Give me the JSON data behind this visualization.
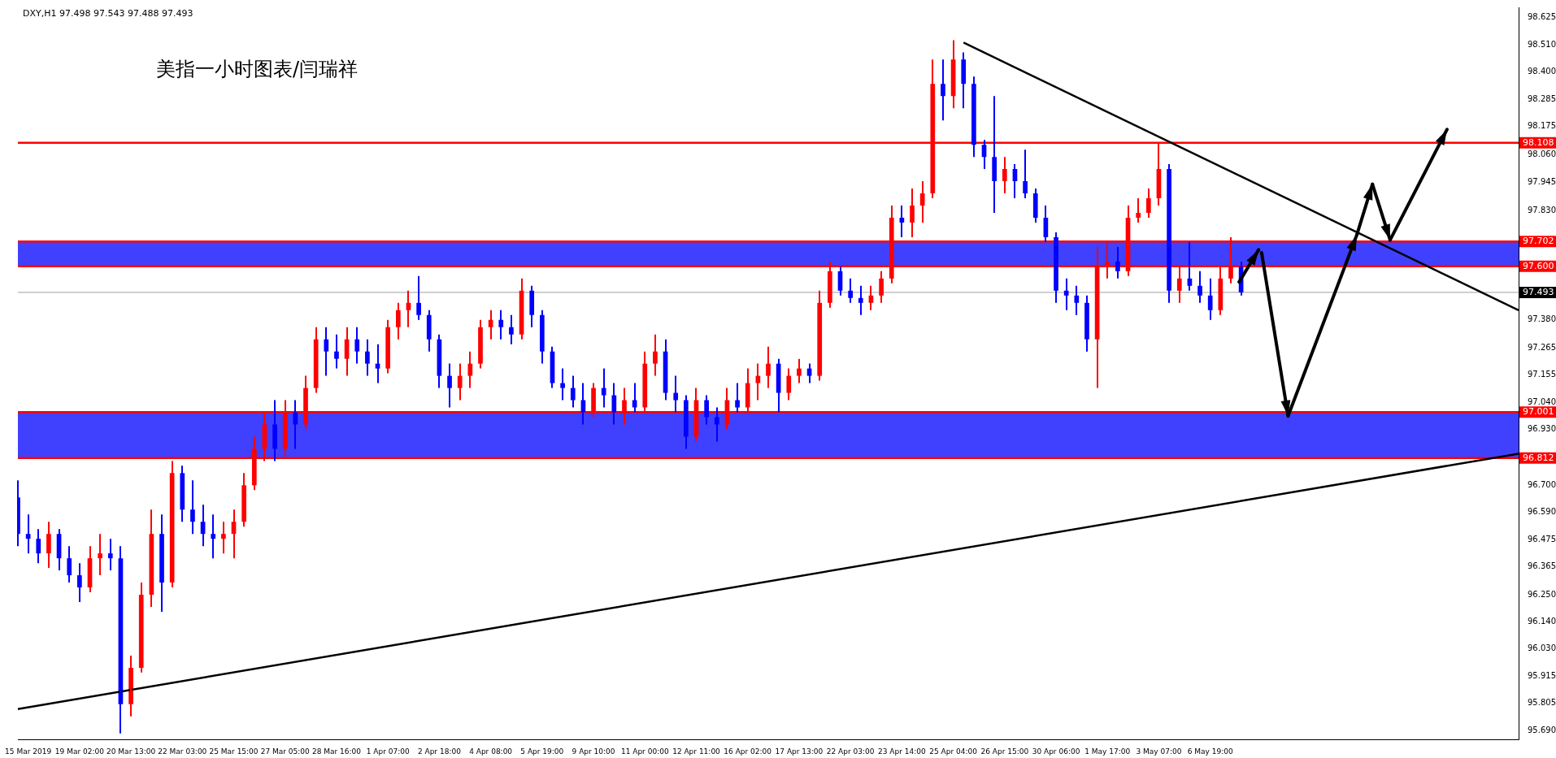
{
  "chart_data": {
    "type": "candlestick",
    "title": "美指一小时图表/闫瑞祥",
    "annotations": [
      "DXY,H1 97.498 97.543 97.488 97.493"
    ],
    "categories": [
      null,
      "15 Mar 2019",
      null,
      null,
      null,
      null,
      "19 Mar 02:00",
      null,
      null,
      null,
      null,
      "20 Mar 13:00",
      null,
      null,
      null,
      null,
      "22 Mar 03:00",
      null,
      null,
      null,
      null,
      "25 Mar 15:00",
      null,
      null,
      null,
      null,
      "27 Mar 05:00",
      null,
      null,
      null,
      null,
      "28 Mar 16:00",
      null,
      null,
      null,
      null,
      "1 Apr 07:00",
      null,
      null,
      null,
      null,
      "2 Apr 18:00",
      null,
      null,
      null,
      null,
      "4 Apr 08:00",
      null,
      null,
      null,
      null,
      "5 Apr 19:00",
      null,
      null,
      null,
      null,
      "9 Apr 10:00",
      null,
      null,
      null,
      null,
      "11 Apr 00:00",
      null,
      null,
      null,
      null,
      "12 Apr 11:00",
      null,
      null,
      null,
      null,
      "16 Apr 02:00",
      null,
      null,
      null,
      null,
      "17 Apr 13:00",
      null,
      null,
      null,
      null,
      "22 Apr 03:00",
      null,
      null,
      null,
      null,
      "23 Apr 14:00",
      null,
      null,
      null,
      null,
      "25 Apr 04:00",
      null,
      null,
      null,
      null,
      "26 Apr 15:00",
      null,
      null,
      null,
      null,
      "30 Apr 06:00",
      null,
      null,
      null,
      null,
      "1 May 17:00",
      null,
      null,
      null,
      null,
      "3 May 07:00",
      null,
      null,
      null,
      null,
      "6 May 19:00",
      null,
      null,
      null,
      null,
      null,
      null,
      null,
      null,
      null,
      null,
      null,
      null,
      null,
      null,
      null,
      null,
      null,
      null,
      null,
      null,
      null,
      null,
      null,
      null,
      null,
      null,
      null,
      null,
      null,
      null
    ],
    "ohlc": [
      [
        96.65,
        96.72,
        96.45,
        96.5
      ],
      [
        96.5,
        96.58,
        96.42,
        96.48
      ],
      [
        96.48,
        96.52,
        96.38,
        96.42
      ],
      [
        96.42,
        96.55,
        96.36,
        96.5
      ],
      [
        96.5,
        96.52,
        96.35,
        96.4
      ],
      [
        96.4,
        96.45,
        96.3,
        96.33
      ],
      [
        96.33,
        96.38,
        96.22,
        96.28
      ],
      [
        96.28,
        96.45,
        96.26,
        96.4
      ],
      [
        96.4,
        96.5,
        96.33,
        96.42
      ],
      [
        96.42,
        96.48,
        96.35,
        96.4
      ],
      [
        96.4,
        96.45,
        95.68,
        95.8
      ],
      [
        95.8,
        96.0,
        95.75,
        95.95
      ],
      [
        95.95,
        96.3,
        95.93,
        96.25
      ],
      [
        96.25,
        96.6,
        96.2,
        96.5
      ],
      [
        96.5,
        96.58,
        96.18,
        96.3
      ],
      [
        96.3,
        96.8,
        96.28,
        96.75
      ],
      [
        96.75,
        96.78,
        96.55,
        96.6
      ],
      [
        96.6,
        96.72,
        96.5,
        96.55
      ],
      [
        96.55,
        96.62,
        96.45,
        96.5
      ],
      [
        96.5,
        96.58,
        96.4,
        96.48
      ],
      [
        96.48,
        96.55,
        96.42,
        96.5
      ],
      [
        96.5,
        96.6,
        96.4,
        96.55
      ],
      [
        96.55,
        96.75,
        96.53,
        96.7
      ],
      [
        96.7,
        96.9,
        96.68,
        96.85
      ],
      [
        96.85,
        97.0,
        96.8,
        96.95
      ],
      [
        96.95,
        97.05,
        96.8,
        96.85
      ],
      [
        96.85,
        97.05,
        96.82,
        97.0
      ],
      [
        97.0,
        97.05,
        96.85,
        96.95
      ],
      [
        96.95,
        97.15,
        96.93,
        97.1
      ],
      [
        97.1,
        97.35,
        97.08,
        97.3
      ],
      [
        97.3,
        97.35,
        97.15,
        97.25
      ],
      [
        97.25,
        97.32,
        97.18,
        97.22
      ],
      [
        97.22,
        97.35,
        97.15,
        97.3
      ],
      [
        97.3,
        97.35,
        97.2,
        97.25
      ],
      [
        97.25,
        97.3,
        97.15,
        97.2
      ],
      [
        97.2,
        97.28,
        97.12,
        97.18
      ],
      [
        97.18,
        97.38,
        97.16,
        97.35
      ],
      [
        97.35,
        97.45,
        97.3,
        97.42
      ],
      [
        97.42,
        97.5,
        97.35,
        97.45
      ],
      [
        97.45,
        97.56,
        97.38,
        97.4
      ],
      [
        97.4,
        97.42,
        97.25,
        97.3
      ],
      [
        97.3,
        97.32,
        97.1,
        97.15
      ],
      [
        97.15,
        97.2,
        97.02,
        97.1
      ],
      [
        97.1,
        97.2,
        97.05,
        97.15
      ],
      [
        97.15,
        97.25,
        97.1,
        97.2
      ],
      [
        97.2,
        97.38,
        97.18,
        97.35
      ],
      [
        97.35,
        97.42,
        97.3,
        97.38
      ],
      [
        97.38,
        97.42,
        97.3,
        97.35
      ],
      [
        97.35,
        97.4,
        97.28,
        97.32
      ],
      [
        97.32,
        97.55,
        97.3,
        97.5
      ],
      [
        97.5,
        97.52,
        97.35,
        97.4
      ],
      [
        97.4,
        97.42,
        97.2,
        97.25
      ],
      [
        97.25,
        97.27,
        97.1,
        97.12
      ],
      [
        97.12,
        97.18,
        97.05,
        97.1
      ],
      [
        97.1,
        97.15,
        97.02,
        97.05
      ],
      [
        97.05,
        97.12,
        96.95,
        97.0
      ],
      [
        97.0,
        97.12,
        96.98,
        97.1
      ],
      [
        97.1,
        97.18,
        97.02,
        97.07
      ],
      [
        97.07,
        97.12,
        96.95,
        97.0
      ],
      [
        97.0,
        97.1,
        96.95,
        97.05
      ],
      [
        97.05,
        97.12,
        97.0,
        97.02
      ],
      [
        97.02,
        97.25,
        97.0,
        97.2
      ],
      [
        97.2,
        97.32,
        97.15,
        97.25
      ],
      [
        97.25,
        97.3,
        97.05,
        97.08
      ],
      [
        97.08,
        97.15,
        97.0,
        97.05
      ],
      [
        97.05,
        97.07,
        96.85,
        96.9
      ],
      [
        96.9,
        97.1,
        96.88,
        97.05
      ],
      [
        97.05,
        97.07,
        96.95,
        96.98
      ],
      [
        96.98,
        97.02,
        96.88,
        96.95
      ],
      [
        96.95,
        97.1,
        96.93,
        97.05
      ],
      [
        97.05,
        97.12,
        97.0,
        97.02
      ],
      [
        97.02,
        97.18,
        97.0,
        97.12
      ],
      [
        97.12,
        97.2,
        97.05,
        97.15
      ],
      [
        97.15,
        97.27,
        97.1,
        97.2
      ],
      [
        97.2,
        97.22,
        97.0,
        97.08
      ],
      [
        97.08,
        97.18,
        97.05,
        97.15
      ],
      [
        97.15,
        97.22,
        97.12,
        97.18
      ],
      [
        97.18,
        97.2,
        97.12,
        97.15
      ],
      [
        97.15,
        97.5,
        97.13,
        97.45
      ],
      [
        97.45,
        97.62,
        97.43,
        97.58
      ],
      [
        97.58,
        97.6,
        97.48,
        97.5
      ],
      [
        97.5,
        97.55,
        97.45,
        97.47
      ],
      [
        97.47,
        97.52,
        97.4,
        97.45
      ],
      [
        97.45,
        97.52,
        97.42,
        97.48
      ],
      [
        97.48,
        97.58,
        97.45,
        97.55
      ],
      [
        97.55,
        97.85,
        97.53,
        97.8
      ],
      [
        97.8,
        97.85,
        97.72,
        97.78
      ],
      [
        97.78,
        97.92,
        97.72,
        97.85
      ],
      [
        97.85,
        97.95,
        97.78,
        97.9
      ],
      [
        97.9,
        98.45,
        97.88,
        98.35
      ],
      [
        98.35,
        98.45,
        98.2,
        98.3
      ],
      [
        98.3,
        98.53,
        98.25,
        98.45
      ],
      [
        98.45,
        98.48,
        98.25,
        98.35
      ],
      [
        98.35,
        98.38,
        98.05,
        98.1
      ],
      [
        98.1,
        98.12,
        98.0,
        98.05
      ],
      [
        98.05,
        98.3,
        97.82,
        97.95
      ],
      [
        97.95,
        98.05,
        97.9,
        98.0
      ],
      [
        98.0,
        98.02,
        97.88,
        97.95
      ],
      [
        97.95,
        98.08,
        97.88,
        97.9
      ],
      [
        97.9,
        97.92,
        97.78,
        97.8
      ],
      [
        97.8,
        97.85,
        97.7,
        97.72
      ],
      [
        97.72,
        97.74,
        97.45,
        97.5
      ],
      [
        97.5,
        97.55,
        97.42,
        97.48
      ],
      [
        97.48,
        97.52,
        97.4,
        97.45
      ],
      [
        97.45,
        97.48,
        97.25,
        97.3
      ],
      [
        97.3,
        97.68,
        97.1,
        97.6
      ],
      [
        97.6,
        97.7,
        97.55,
        97.62
      ],
      [
        97.62,
        97.68,
        97.55,
        97.58
      ],
      [
        97.58,
        97.85,
        97.56,
        97.8
      ],
      [
        97.8,
        97.88,
        97.78,
        97.82
      ],
      [
        97.82,
        97.92,
        97.8,
        97.88
      ],
      [
        97.88,
        98.11,
        97.85,
        98.0
      ],
      [
        98.0,
        98.02,
        97.45,
        97.5
      ],
      [
        97.5,
        97.6,
        97.45,
        97.55
      ],
      [
        97.55,
        97.7,
        97.5,
        97.52
      ],
      [
        97.52,
        97.58,
        97.45,
        97.48
      ],
      [
        97.48,
        97.55,
        97.38,
        97.42
      ],
      [
        97.42,
        97.6,
        97.4,
        97.55
      ],
      [
        97.55,
        97.72,
        97.53,
        97.6
      ],
      [
        97.6,
        97.62,
        97.48,
        97.493
      ],
      null,
      null,
      null,
      null,
      null,
      null,
      null,
      null,
      null,
      null,
      null,
      null,
      null,
      null,
      null,
      null,
      null,
      null,
      null,
      null,
      null,
      null,
      null,
      null,
      null,
      null,
      null
    ],
    "colors": [
      "#0000ff",
      "#0000ff",
      "#0000ff",
      "#ff0000",
      "#0000ff",
      "#0000ff",
      "#0000ff",
      "#ff0000",
      "#ff0000",
      "#0000ff",
      "#0000ff",
      "#ff0000",
      "#ff0000",
      "#ff0000",
      "#0000ff",
      "#ff0000",
      "#0000ff",
      "#0000ff",
      "#0000ff",
      "#0000ff",
      "#ff0000",
      "#ff0000",
      "#ff0000",
      "#ff0000",
      "#ff0000",
      "#0000ff",
      "#ff0000",
      "#0000ff",
      "#ff0000",
      "#ff0000",
      "#0000ff",
      "#0000ff",
      "#ff0000",
      "#0000ff",
      "#0000ff",
      "#0000ff",
      "#ff0000",
      "#ff0000",
      "#ff0000",
      "#0000ff",
      "#0000ff",
      "#0000ff",
      "#0000ff",
      "#ff0000",
      "#ff0000",
      "#ff0000",
      "#ff0000",
      "#0000ff",
      "#0000ff",
      "#ff0000",
      "#0000ff",
      "#0000ff",
      "#0000ff",
      "#0000ff",
      "#0000ff",
      "#0000ff",
      "#ff0000",
      "#0000ff",
      "#0000ff",
      "#ff0000",
      "#0000ff",
      "#ff0000",
      "#ff0000",
      "#0000ff",
      "#0000ff",
      "#0000ff",
      "#ff0000",
      "#0000ff",
      "#0000ff",
      "#ff0000",
      "#0000ff",
      "#ff0000",
      "#ff0000",
      "#ff0000",
      "#0000ff",
      "#ff0000",
      "#ff0000",
      "#0000ff",
      "#ff0000",
      "#ff0000",
      "#0000ff",
      "#0000ff",
      "#0000ff",
      "#ff0000",
      "#ff0000",
      "#ff0000",
      "#0000ff",
      "#ff0000",
      "#ff0000",
      "#ff0000",
      "#0000ff",
      "#ff0000",
      "#0000ff",
      "#0000ff",
      "#0000ff",
      "#0000ff",
      "#ff0000",
      "#0000ff",
      "#0000ff",
      "#0000ff",
      "#0000ff",
      "#0000ff",
      "#0000ff",
      "#0000ff",
      "#0000ff",
      "#ff0000",
      "#ff0000",
      "#0000ff",
      "#ff0000",
      "#ff0000",
      "#ff0000",
      "#ff0000",
      "#0000ff",
      "#ff0000",
      "#0000ff",
      "#0000ff",
      "#0000ff",
      "#ff0000",
      "#ff0000",
      "#0000ff",
      null,
      null,
      null,
      null,
      null,
      null,
      null,
      null,
      null,
      null,
      null,
      null,
      null,
      null,
      null,
      null,
      null,
      null,
      null,
      null,
      null,
      null,
      null,
      null,
      null,
      null,
      null
    ],
    "series": [
      {
        "type": "line",
        "color": "#000000",
        "values": [
          null,
          null,
          null,
          null,
          null,
          null,
          null,
          null,
          null,
          null,
          null,
          null,
          null,
          null,
          null,
          null,
          null,
          null,
          null,
          null,
          null,
          null,
          null,
          null,
          null,
          null,
          null,
          null,
          null,
          null,
          null,
          null,
          null,
          null,
          null,
          null,
          null,
          null,
          null,
          null,
          null,
          null,
          null,
          null,
          null,
          null,
          null,
          null,
          null,
          null,
          null,
          null,
          null,
          null,
          null,
          null,
          null,
          null,
          null,
          null,
          null,
          null,
          null,
          null,
          null,
          null,
          null,
          null,
          null,
          null,
          null,
          null,
          null,
          null,
          null,
          null,
          null,
          null,
          null,
          null,
          null,
          null,
          null,
          null,
          null,
          null,
          null,
          null,
          null,
          null,
          null,
          null,
          98.52,
          null,
          null,
          null,
          null,
          null,
          null,
          null,
          null,
          null,
          null,
          null,
          null,
          null,
          null,
          null,
          null,
          null,
          null,
          null,
          null,
          null,
          null,
          null,
          null,
          null,
          null,
          null,
          null,
          null,
          null,
          null,
          null,
          null,
          null,
          null,
          null,
          null,
          null,
          null,
          null,
          null,
          null,
          null,
          null,
          null,
          null,
          null,
          null,
          null,
          null,
          null,
          null,
          null,
          97.42
        ]
      },
      {
        "type": "line",
        "color": "#000000",
        "values": [
          95.78,
          null,
          null,
          null,
          null,
          null,
          null,
          null,
          null,
          null,
          null,
          null,
          null,
          null,
          null,
          null,
          null,
          null,
          null,
          null,
          null,
          null,
          null,
          null,
          null,
          null,
          null,
          null,
          null,
          null,
          null,
          null,
          null,
          null,
          null,
          null,
          null,
          null,
          null,
          null,
          null,
          null,
          null,
          null,
          null,
          null,
          null,
          null,
          null,
          null,
          null,
          null,
          null,
          null,
          null,
          null,
          null,
          null,
          null,
          null,
          null,
          null,
          null,
          null,
          null,
          null,
          null,
          null,
          null,
          null,
          null,
          null,
          null,
          null,
          null,
          null,
          null,
          null,
          null,
          null,
          null,
          null,
          null,
          null,
          null,
          null,
          null,
          null,
          null,
          null,
          null,
          null,
          null,
          null,
          null,
          null,
          null,
          null,
          null,
          null,
          null,
          null,
          null,
          null,
          null,
          null,
          null,
          null,
          null,
          null,
          null,
          null,
          null,
          null,
          null,
          null,
          null,
          null,
          null,
          null,
          null,
          null,
          null,
          null,
          null,
          null,
          null,
          null,
          null,
          null,
          null,
          null,
          null,
          null,
          null,
          null,
          null,
          null,
          null,
          null,
          null,
          null,
          null,
          null,
          null,
          null,
          96.83
        ]
      }
    ],
    "ylim": [
      95.655,
      98.665
    ],
    "yticks": [
      {
        "value": 98.625,
        "label": "98.625"
      },
      {
        "value": 98.51,
        "label": "98.510"
      },
      {
        "value": 98.4,
        "label": "98.400"
      },
      {
        "value": 98.285,
        "label": "98.285"
      },
      {
        "value": 98.175,
        "label": "98.175"
      },
      {
        "value": 98.06,
        "label": "98.060"
      },
      {
        "value": 97.945,
        "label": "97.945"
      },
      {
        "value": 97.83,
        "label": "97.830"
      },
      {
        "value": 97.38,
        "label": "97.380"
      },
      {
        "value": 97.265,
        "label": "97.265"
      },
      {
        "value": 97.155,
        "label": "97.155"
      },
      {
        "value": 97.04,
        "label": "97.040"
      },
      {
        "value": 96.93,
        "label": "96.930"
      },
      {
        "value": 96.7,
        "label": "96.700"
      },
      {
        "value": 96.59,
        "label": "96.590"
      },
      {
        "value": 96.475,
        "label": "96.475"
      },
      {
        "value": 96.365,
        "label": "96.365"
      },
      {
        "value": 96.25,
        "label": "96.250"
      },
      {
        "value": 96.14,
        "label": "96.140"
      },
      {
        "value": 96.03,
        "label": "96.030"
      },
      {
        "value": 95.915,
        "label": "95.915"
      },
      {
        "value": 95.805,
        "label": "95.805"
      },
      {
        "value": 95.69,
        "label": "95.690"
      }
    ],
    "bands": [
      {
        "axis": "y",
        "from": 97.6,
        "to": 97.702,
        "color": "#0000ff"
      },
      {
        "axis": "y",
        "from": 96.812,
        "to": 97.001,
        "color": "#0000ff"
      }
    ],
    "ref_lines": [
      {
        "axis": "y",
        "value": 98.108,
        "label": "98.108",
        "color": "#ff0000"
      },
      {
        "axis": "y",
        "value": 97.702,
        "label": "97.702",
        "color": "#ff0000"
      },
      {
        "axis": "y",
        "value": 97.6,
        "label": "97.600",
        "color": "#ff0000"
      },
      {
        "axis": "y",
        "value": 97.493,
        "label": "97.493",
        "color": "#a0a0a0"
      },
      {
        "axis": "y",
        "value": 97.001,
        "label": "97.001",
        "color": "#ff0000"
      },
      {
        "axis": "y",
        "value": 96.812,
        "label": "96.812",
        "color": "#ff0000"
      }
    ]
  }
}
